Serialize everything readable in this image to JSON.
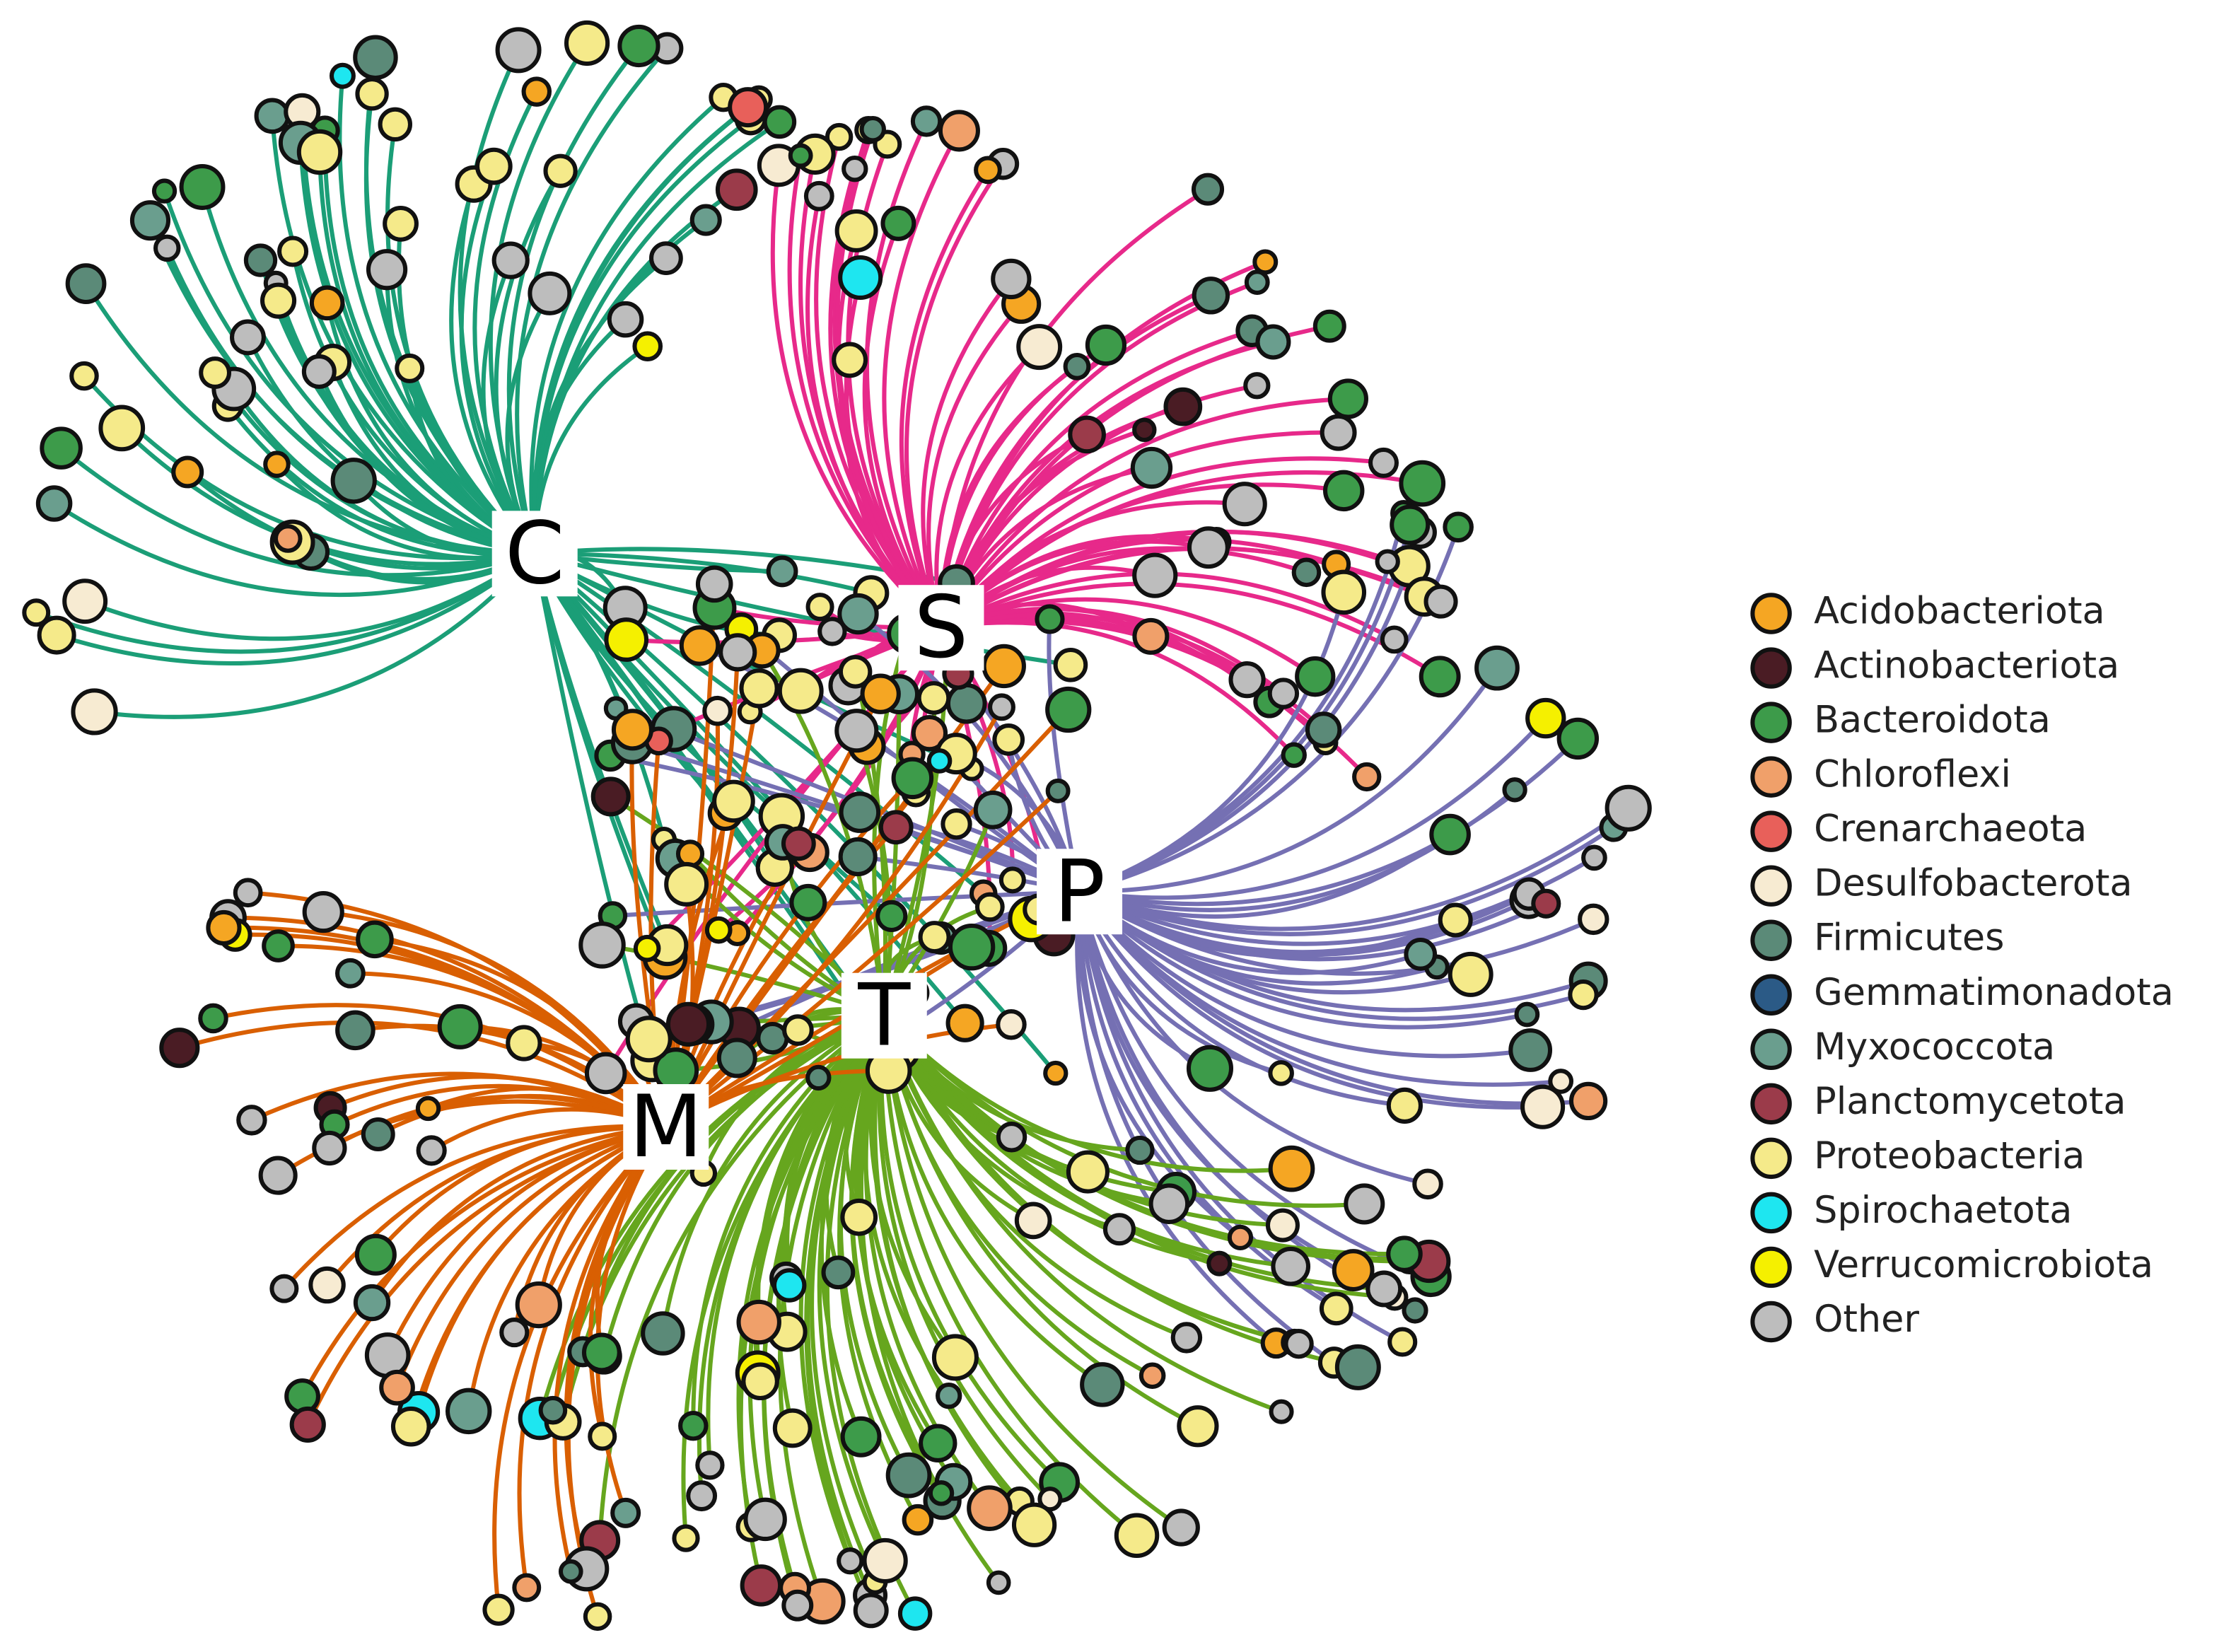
{
  "hubs": [
    {
      "label": "C",
      "color": "#1b9e77"
    },
    {
      "label": "S",
      "color": "#e7298a"
    },
    {
      "label": "P",
      "color": "#7570b3"
    },
    {
      "label": "T",
      "color": "#66a61e"
    },
    {
      "label": "M",
      "color": "#d95f02"
    }
  ],
  "legend": [
    {
      "label": "Acidobacteriota",
      "color": "#f5a623"
    },
    {
      "label": "Actinobacteriota",
      "color": "#4a1c24"
    },
    {
      "label": "Bacteroidota",
      "color": "#3d9b4a"
    },
    {
      "label": "Chloroflexi",
      "color": "#f0a06a"
    },
    {
      "label": "Crenarchaeota",
      "color": "#e8605a"
    },
    {
      "label": "Desulfobacterota",
      "color": "#f7ebd2"
    },
    {
      "label": "Firmicutes",
      "color": "#5b8a78"
    },
    {
      "label": "Gemmatimonadota",
      "color": "#2b5a86"
    },
    {
      "label": "Myxococcota",
      "color": "#6a9e8e"
    },
    {
      "label": "Planctomycetota",
      "color": "#9b3b4a"
    },
    {
      "label": "Proteobacteria",
      "color": "#f5ea8a"
    },
    {
      "label": "Spirochaetota",
      "color": "#1ee6f0"
    },
    {
      "label": "Verrucomicrobiota",
      "color": "#f5f000"
    },
    {
      "label": "Other",
      "color": "#bdbdbd"
    }
  ]
}
